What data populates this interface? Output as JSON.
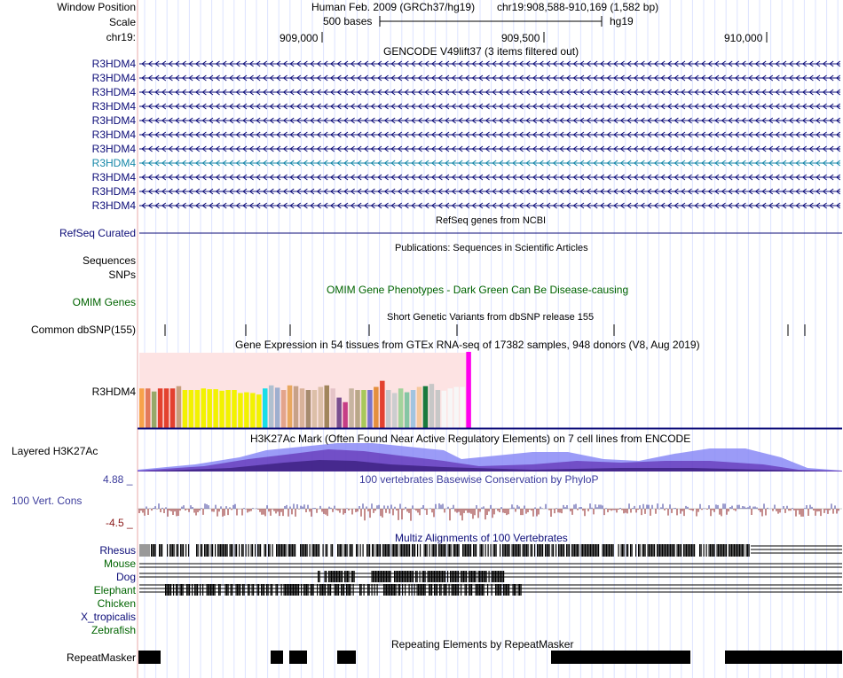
{
  "header": {
    "window_position_label": "Window Position",
    "scale_label": "Scale",
    "chrom_label": "chr19:",
    "assembly": "Human Feb. 2009 (GRCh37/hg19)",
    "position": "chr19:908,588-910,169 (1,582 bp)",
    "scale_text": "500 bases",
    "db": "hg19",
    "ticks": [
      "909,000",
      "909,500",
      "910,000"
    ]
  },
  "gencode": {
    "title": "GENCODE V49lift37 (3 items filtered out)",
    "items": [
      {
        "label": "R3HDM4",
        "color": "#0c0c78"
      },
      {
        "label": "R3HDM4",
        "color": "#0c0c78"
      },
      {
        "label": "R3HDM4",
        "color": "#0c0c78"
      },
      {
        "label": "R3HDM4",
        "color": "#0c0c78"
      },
      {
        "label": "R3HDM4",
        "color": "#0c0c78"
      },
      {
        "label": "R3HDM4",
        "color": "#0c0c78"
      },
      {
        "label": "R3HDM4",
        "color": "#0c0c78"
      },
      {
        "label": "R3HDM4",
        "color": "#1487a8"
      },
      {
        "label": "R3HDM4",
        "color": "#0c0c78"
      },
      {
        "label": "R3HDM4",
        "color": "#0c0c78"
      },
      {
        "label": "R3HDM4",
        "color": "#0c0c78"
      }
    ]
  },
  "refseq": {
    "title": "RefSeq genes from NCBI",
    "label": "RefSeq Curated",
    "color": "#0c0c78"
  },
  "publications": {
    "title": "Publications: Sequences in Scientific Articles",
    "labels": [
      "Sequences",
      "SNPs"
    ]
  },
  "omim": {
    "title": "OMIM Gene Phenotypes - Dark Green Can Be Disease-causing",
    "label": "OMIM Genes",
    "color": "#006400"
  },
  "dbsnp": {
    "title": "Short Genetic Variants from dbSNP release 155",
    "label": "Common dbSNP(155)"
  },
  "gtex": {
    "title": "Gene Expression in 54 tissues from GTEx RNA-seq of 17382 samples, 948 donors (V8, Aug 2019)",
    "label": "R3HDM4",
    "values": [
      0.52,
      0.52,
      0.48,
      0.52,
      0.52,
      0.52,
      0.55,
      0.5,
      0.5,
      0.5,
      0.52,
      0.51,
      0.51,
      0.49,
      0.5,
      0.5,
      0.46,
      0.47,
      0.46,
      0.44,
      0.52,
      0.56,
      0.53,
      0.5,
      0.56,
      0.55,
      0.52,
      0.5,
      0.5,
      0.54,
      0.56,
      0.52,
      0.4,
      0.34,
      0.52,
      0.5,
      0.5,
      0.5,
      0.54,
      0.62,
      0.5,
      0.46,
      0.52,
      0.47,
      0.5,
      0.54,
      0.55,
      0.58,
      0.5,
      0.49,
      0.52,
      0.54,
      0.54,
      1.0
    ],
    "colors": [
      "#f7a24a",
      "#e3795a",
      "#97a869",
      "#e3412f",
      "#e3412f",
      "#e3412f",
      "#c79e7c",
      "#f2f200",
      "#f2f200",
      "#f2f200",
      "#f2f200",
      "#f2f200",
      "#f2f200",
      "#f2f200",
      "#f2f200",
      "#f2f200",
      "#f2f200",
      "#f2f200",
      "#f2f200",
      "#f2f200",
      "#19dde8",
      "#b0c0d0",
      "#9fafcf",
      "#e3a48b",
      "#e8a860",
      "#c7a188",
      "#d9b29a",
      "#a78b6f",
      "#dcbfa8",
      "#dcbfa8",
      "#a1855c",
      "#e5c4c8",
      "#7a4e8f",
      "#c63e86",
      "#c7b4a0",
      "#b9a788",
      "#a8c85a",
      "#7b74c9",
      "#e58f3e",
      "#e3412f",
      "#c6c8ca",
      "#cccdcf",
      "#a3d39c",
      "#85c6a4",
      "#a2c4e0",
      "#f6c89d",
      "#1a7a3e",
      "#c7c7c7",
      "#c7c7c7",
      "#f7f7f7",
      "#f7f7f7",
      "#f7f7f7",
      "#f7f7f7",
      "#ff00ee"
    ]
  },
  "h3k27ac": {
    "title": "H3K27Ac Mark (Often Found Near Active Regulatory Elements) on 7 cell lines from ENCODE",
    "label": "Layered H3K27Ac"
  },
  "cons": {
    "title": "100 vertebrates Basewise Conservation by PhyloP",
    "label": "100 Vert. Cons",
    "max": "4.88 _",
    "min": "-4.5 _"
  },
  "multiz": {
    "title": "Multiz Alignments of 100 Vertebrates",
    "species": [
      {
        "name": "Rhesus",
        "color": "#0c0c78"
      },
      {
        "name": "Mouse",
        "color": "#006400"
      },
      {
        "name": "Dog",
        "color": "#0c0c78"
      },
      {
        "name": "Elephant",
        "color": "#006400"
      },
      {
        "name": "Chicken",
        "color": "#006400"
      },
      {
        "name": "X_tropicalis",
        "color": "#0c0c78"
      },
      {
        "name": "Zebrafish",
        "color": "#006400"
      }
    ]
  },
  "repeat": {
    "title": "Repeating Elements by RepeatMasker",
    "label": "RepeatMasker"
  }
}
